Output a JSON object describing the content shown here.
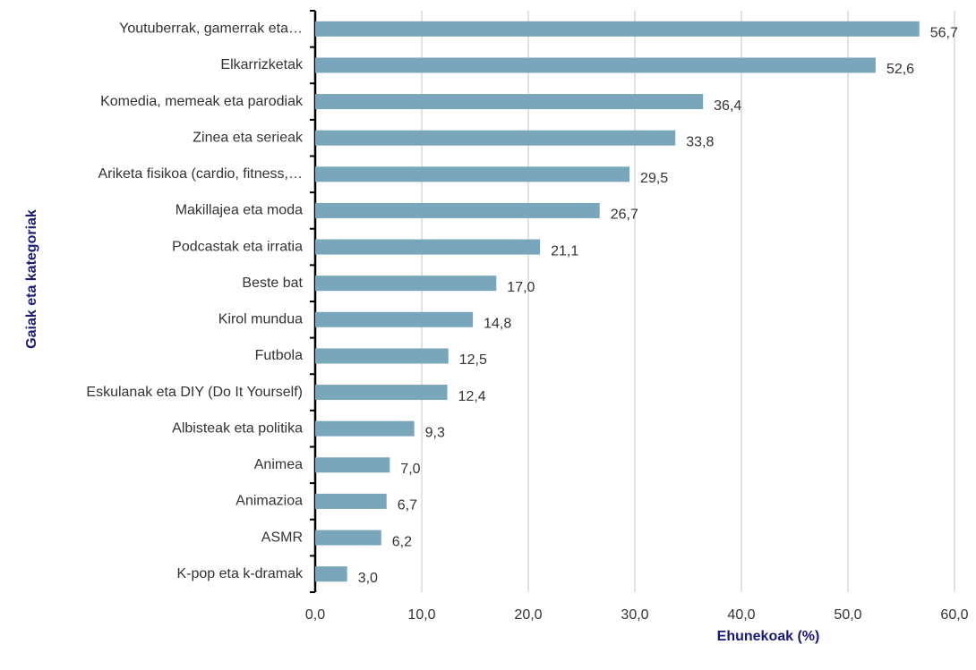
{
  "chart_data": {
    "type": "bar",
    "orientation": "horizontal",
    "categories": [
      "Youtuberrak, gamerrak eta…",
      "Elkarrizketak",
      "Komedia, memeak eta parodiak",
      "Zinea eta serieak",
      "Ariketa fisikoa (cardio, fitness,…",
      "Makillajea eta moda",
      "Podcastak eta irratia",
      "Beste bat",
      "Kirol mundua",
      "Futbola",
      "Eskulanak eta DIY (Do It Yourself)",
      "Albisteak eta politika",
      "Animea",
      "Animazioa",
      "ASMR",
      "K-pop eta k-dramak"
    ],
    "values": [
      56.7,
      52.6,
      36.4,
      33.8,
      29.5,
      26.7,
      21.1,
      17.0,
      14.8,
      12.5,
      12.4,
      9.3,
      7.0,
      6.7,
      6.2,
      3.0
    ],
    "value_labels": [
      "56,7",
      "52,6",
      "36,4",
      "33,8",
      "29,5",
      "26,7",
      "21,1",
      "17,0",
      "14,8",
      "12,5",
      "12,4",
      "9,3",
      "7,0",
      "6,7",
      "6,2",
      "3,0"
    ],
    "color": "#7aa6bb",
    "xlabel": "Ehunekoak (%)",
    "ylabel": "Gaiak eta kategoriak",
    "xlim": [
      0,
      60
    ],
    "xticks": [
      {
        "value": 0,
        "label": "0,0"
      },
      {
        "value": 10,
        "label": "10,0"
      },
      {
        "value": 20,
        "label": "20,0"
      },
      {
        "value": 30,
        "label": "30,0"
      },
      {
        "value": 40,
        "label": "40,0"
      },
      {
        "value": 50,
        "label": "50,0"
      },
      {
        "value": 60,
        "label": "60,0"
      }
    ],
    "grid": true
  }
}
